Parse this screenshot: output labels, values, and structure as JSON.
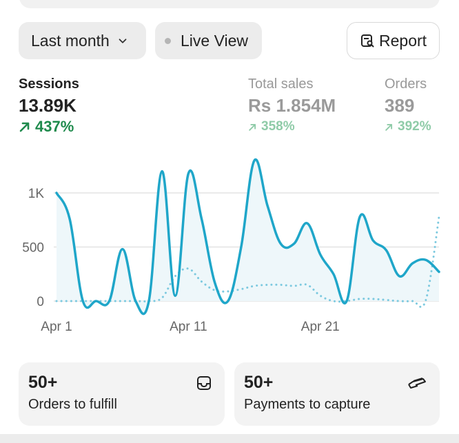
{
  "filters": {
    "range_label": "Last month",
    "live_label": "Live View",
    "report_label": "Report"
  },
  "metrics": {
    "sessions": {
      "label": "Sessions",
      "value": "13.89K",
      "change": "437%"
    },
    "total_sales": {
      "label": "Total sales",
      "value": "Rs 1.854M",
      "change": "358%"
    },
    "orders": {
      "label": "Orders",
      "value": "389",
      "change": "392%"
    }
  },
  "chart_data": {
    "type": "line",
    "y_ticks": [
      "1K",
      "500",
      "0"
    ],
    "x_ticks": [
      "Apr 1",
      "Apr 11",
      "Apr 21"
    ],
    "ylim": [
      0,
      1250
    ],
    "x": [
      1,
      2,
      3,
      4,
      5,
      6,
      7,
      8,
      9,
      10,
      11,
      12,
      13,
      14,
      15,
      16,
      17,
      18,
      19,
      20,
      21,
      22,
      23,
      24,
      25,
      26,
      27,
      28,
      29,
      30
    ],
    "series": [
      {
        "style": "solid",
        "color": "#1fa6c9",
        "values": [
          1000,
          760,
          0,
          0,
          0,
          480,
          0,
          0,
          1200,
          50,
          1180,
          760,
          170,
          0,
          500,
          1300,
          880,
          530,
          530,
          720,
          430,
          250,
          0,
          780,
          560,
          470,
          230,
          350,
          380,
          270
        ]
      },
      {
        "style": "dotted",
        "color": "#7cc9df",
        "values": [
          0,
          0,
          0,
          0,
          0,
          0,
          0,
          0,
          30,
          230,
          300,
          180,
          100,
          90,
          110,
          140,
          150,
          150,
          140,
          150,
          50,
          0,
          0,
          20,
          20,
          10,
          0,
          0,
          10,
          780
        ]
      }
    ]
  },
  "cards": [
    {
      "count": "50+",
      "label": "Orders to fulfill",
      "icon": "inbox-icon"
    },
    {
      "count": "50+",
      "label": "Payments to capture",
      "icon": "hand-card-icon"
    }
  ]
}
